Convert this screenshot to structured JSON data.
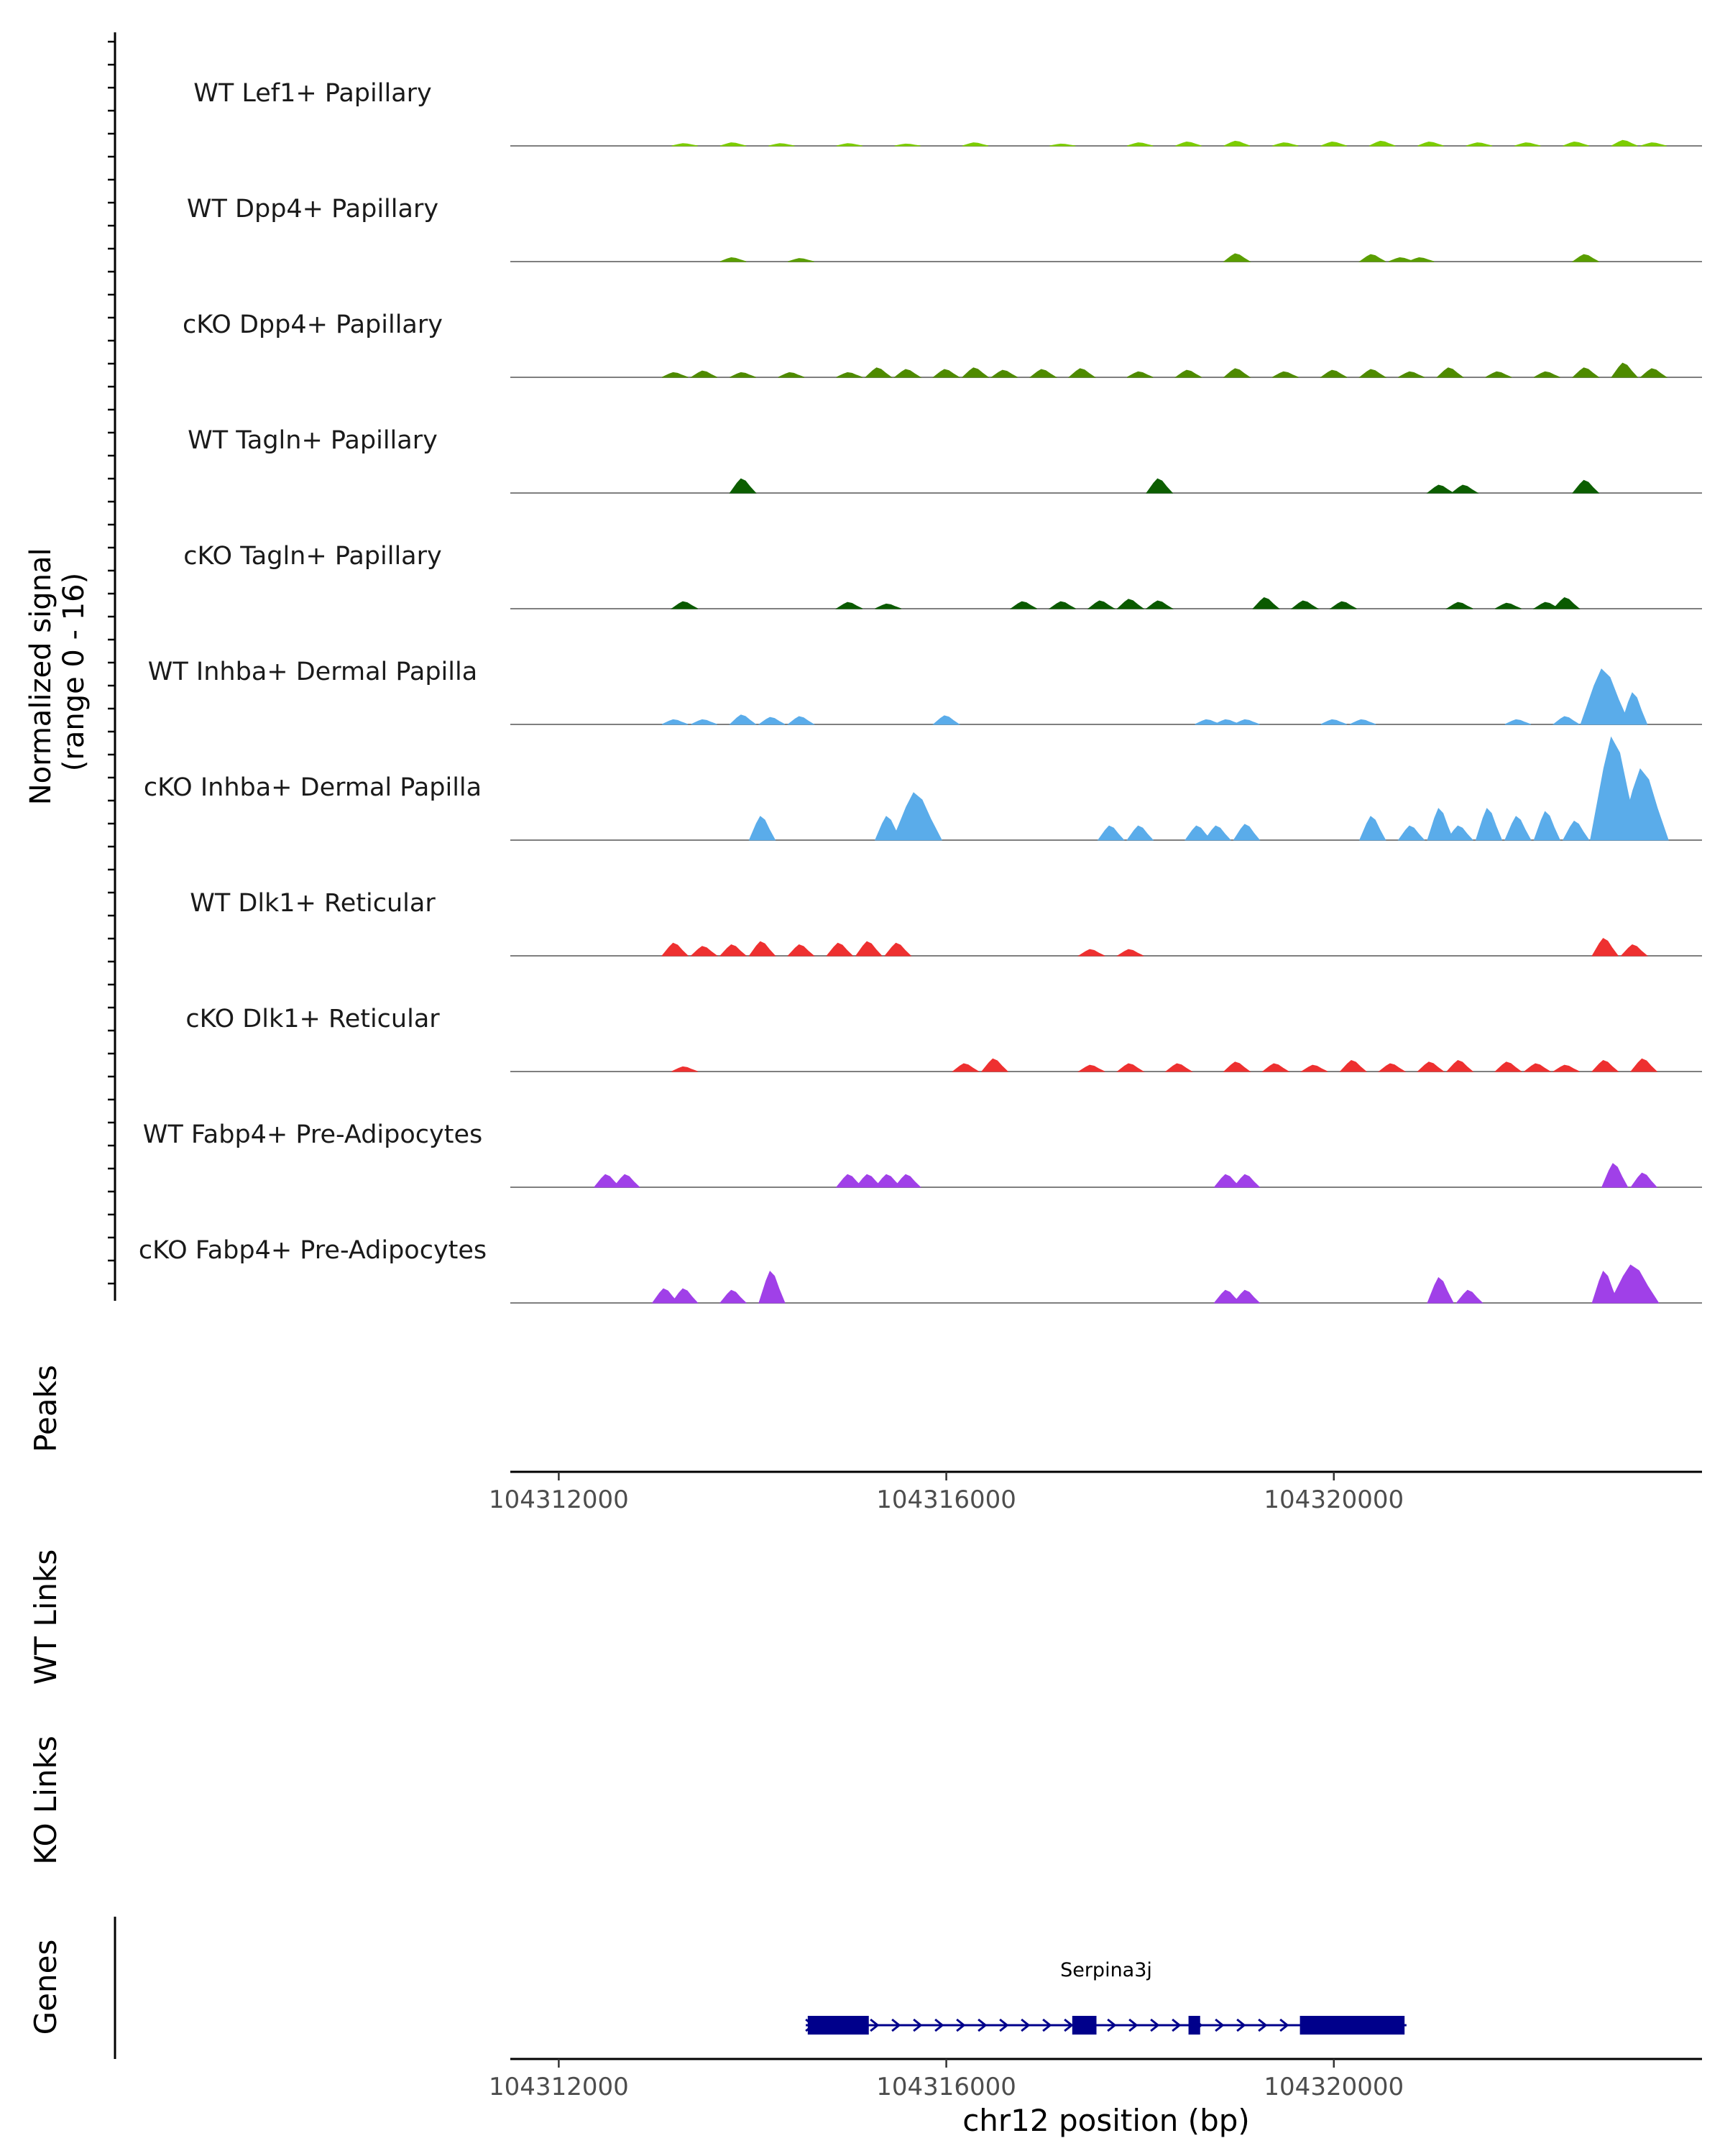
{
  "chart_data": {
    "type": "area",
    "title": "",
    "ylabel": "Normalized signal\n(range 0 - 16)",
    "y_range": [
      0,
      16
    ],
    "xlabel": "chr12 position (bp)",
    "chromosome": "chr12",
    "xlim": [
      104311500,
      104323800
    ],
    "x_ticks": [
      104312000,
      104316000,
      104320000
    ],
    "x_tick_labels": [
      "104312000",
      "104316000",
      "104320000"
    ],
    "panel_labels": {
      "peaks": "Peaks",
      "wt_links": "WT Links",
      "ko_links": "KO Links",
      "genes": "Genes"
    },
    "tracks": [
      {
        "name": "WT Lef1+ Papillary",
        "color": "#7CCD00",
        "peaks": [
          [
            104313300,
            0.15
          ],
          [
            104313800,
            0.2
          ],
          [
            104314300,
            0.15
          ],
          [
            104315000,
            0.15
          ],
          [
            104315600,
            0.12
          ],
          [
            104316300,
            0.2
          ],
          [
            104317200,
            0.12
          ],
          [
            104318000,
            0.2
          ],
          [
            104318500,
            0.25
          ],
          [
            104319000,
            0.3
          ],
          [
            104319500,
            0.2
          ],
          [
            104320000,
            0.25
          ],
          [
            104320500,
            0.3
          ],
          [
            104321000,
            0.25
          ],
          [
            104321500,
            0.2
          ],
          [
            104322000,
            0.2
          ],
          [
            104322500,
            0.25
          ],
          [
            104323000,
            0.35
          ],
          [
            104323300,
            0.2
          ]
        ]
      },
      {
        "name": "WT Dpp4+ Papillary",
        "color": "#5A9E00",
        "peaks": [
          [
            104313800,
            0.25
          ],
          [
            104314500,
            0.2
          ],
          [
            104319000,
            0.5
          ],
          [
            104320400,
            0.45
          ],
          [
            104320700,
            0.25
          ],
          [
            104320900,
            0.25
          ],
          [
            104322600,
            0.45
          ]
        ]
      },
      {
        "name": "cKO Dpp4+ Papillary",
        "color": "#4E8A00",
        "peaks": [
          [
            104313200,
            0.3
          ],
          [
            104313500,
            0.4
          ],
          [
            104313900,
            0.3
          ],
          [
            104314400,
            0.3
          ],
          [
            104315000,
            0.3
          ],
          [
            104315300,
            0.6
          ],
          [
            104315600,
            0.5
          ],
          [
            104316000,
            0.5
          ],
          [
            104316300,
            0.6
          ],
          [
            104316600,
            0.45
          ],
          [
            104317000,
            0.5
          ],
          [
            104317400,
            0.55
          ],
          [
            104318000,
            0.35
          ],
          [
            104318500,
            0.45
          ],
          [
            104319000,
            0.55
          ],
          [
            104319500,
            0.35
          ],
          [
            104320000,
            0.45
          ],
          [
            104320400,
            0.5
          ],
          [
            104320800,
            0.35
          ],
          [
            104321200,
            0.6
          ],
          [
            104321700,
            0.35
          ],
          [
            104322200,
            0.35
          ],
          [
            104322600,
            0.6
          ],
          [
            104323000,
            0.9
          ],
          [
            104323300,
            0.55
          ]
        ]
      },
      {
        "name": "WT Tagln+ Papillary",
        "color": "#0C5E00",
        "peaks": [
          [
            104313900,
            0.9
          ],
          [
            104318200,
            0.9
          ],
          [
            104321100,
            0.5
          ],
          [
            104321350,
            0.5
          ],
          [
            104322600,
            0.8
          ]
        ]
      },
      {
        "name": "cKO Tagln+ Papillary",
        "color": "#0A5A00",
        "peaks": [
          [
            104313300,
            0.45
          ],
          [
            104315000,
            0.4
          ],
          [
            104315400,
            0.3
          ],
          [
            104316800,
            0.45
          ],
          [
            104317200,
            0.45
          ],
          [
            104317600,
            0.5
          ],
          [
            104317900,
            0.6
          ],
          [
            104318200,
            0.5
          ],
          [
            104319300,
            0.7
          ],
          [
            104319700,
            0.5
          ],
          [
            104320100,
            0.45
          ],
          [
            104321300,
            0.4
          ],
          [
            104321800,
            0.35
          ],
          [
            104322200,
            0.4
          ],
          [
            104322400,
            0.7
          ]
        ]
      },
      {
        "name": "WT Inhba+ Dermal Papilla",
        "color": "#5AACEA",
        "peaks": [
          [
            104313200,
            0.3
          ],
          [
            104313500,
            0.3
          ],
          [
            104313900,
            0.6
          ],
          [
            104314200,
            0.45
          ],
          [
            104314500,
            0.5
          ],
          [
            104316000,
            0.55
          ],
          [
            104318700,
            0.3
          ],
          [
            104318900,
            0.3
          ],
          [
            104319100,
            0.3
          ],
          [
            104320000,
            0.3
          ],
          [
            104320300,
            0.3
          ],
          [
            104321900,
            0.3
          ],
          [
            104322400,
            0.5
          ],
          [
            104322800,
            3.5
          ],
          [
            104323100,
            2.0
          ]
        ]
      },
      {
        "name": "cKO Inhba+ Dermal Papilla",
        "color": "#5AACEA",
        "peaks": [
          [
            104314100,
            1.5
          ],
          [
            104315400,
            1.5
          ],
          [
            104315700,
            3.0
          ],
          [
            104317700,
            0.9
          ],
          [
            104318000,
            0.9
          ],
          [
            104318600,
            0.9
          ],
          [
            104318800,
            0.9
          ],
          [
            104319100,
            1.0
          ],
          [
            104320400,
            1.5
          ],
          [
            104320800,
            0.9
          ],
          [
            104321100,
            2.0
          ],
          [
            104321300,
            0.9
          ],
          [
            104321600,
            2.0
          ],
          [
            104321900,
            1.5
          ],
          [
            104322200,
            1.8
          ],
          [
            104322500,
            1.2
          ],
          [
            104322900,
            6.5
          ],
          [
            104323200,
            4.5
          ]
        ]
      },
      {
        "name": "WT Dlk1+ Reticular",
        "color": "#EE3030",
        "peaks": [
          [
            104313200,
            0.8
          ],
          [
            104313500,
            0.6
          ],
          [
            104313800,
            0.7
          ],
          [
            104314100,
            0.9
          ],
          [
            104314500,
            0.7
          ],
          [
            104314900,
            0.8
          ],
          [
            104315200,
            0.9
          ],
          [
            104315500,
            0.8
          ],
          [
            104317500,
            0.4
          ],
          [
            104317900,
            0.4
          ],
          [
            104322800,
            1.1
          ],
          [
            104323100,
            0.7
          ]
        ]
      },
      {
        "name": "cKO Dlk1+ Reticular",
        "color": "#EE3030",
        "peaks": [
          [
            104313300,
            0.3
          ],
          [
            104316200,
            0.5
          ],
          [
            104316500,
            0.8
          ],
          [
            104317500,
            0.4
          ],
          [
            104317900,
            0.5
          ],
          [
            104318400,
            0.5
          ],
          [
            104319000,
            0.6
          ],
          [
            104319400,
            0.5
          ],
          [
            104319800,
            0.4
          ],
          [
            104320200,
            0.7
          ],
          [
            104320600,
            0.5
          ],
          [
            104321000,
            0.6
          ],
          [
            104321300,
            0.7
          ],
          [
            104321800,
            0.6
          ],
          [
            104322100,
            0.5
          ],
          [
            104322400,
            0.4
          ],
          [
            104322800,
            0.7
          ],
          [
            104323200,
            0.8
          ]
        ]
      },
      {
        "name": "WT Fabp4+ Pre-Adipocytes",
        "color": "#A040E8",
        "peaks": [
          [
            104312500,
            0.8
          ],
          [
            104312700,
            0.8
          ],
          [
            104315000,
            0.8
          ],
          [
            104315200,
            0.8
          ],
          [
            104315400,
            0.8
          ],
          [
            104315600,
            0.8
          ],
          [
            104318900,
            0.8
          ],
          [
            104319100,
            0.8
          ],
          [
            104322900,
            1.5
          ],
          [
            104323200,
            0.9
          ]
        ]
      },
      {
        "name": "cKO Fabp4+ Pre-Adipocytes",
        "color": "#A040E8",
        "peaks": [
          [
            104313100,
            0.9
          ],
          [
            104313300,
            0.9
          ],
          [
            104313800,
            0.8
          ],
          [
            104314200,
            2.0
          ],
          [
            104318900,
            0.8
          ],
          [
            104319100,
            0.8
          ],
          [
            104321100,
            1.6
          ],
          [
            104321400,
            0.8
          ],
          [
            104322800,
            2.0
          ],
          [
            104323100,
            2.4
          ]
        ]
      }
    ],
    "gene": {
      "name": "Serpina3j",
      "color": "#00008B",
      "strand": "+",
      "start": 104314550,
      "end": 104320750,
      "exons": [
        [
          104314570,
          104315200
        ],
        [
          104317300,
          104317550
        ],
        [
          104318500,
          104318620
        ],
        [
          104319650,
          104320730
        ]
      ]
    }
  }
}
